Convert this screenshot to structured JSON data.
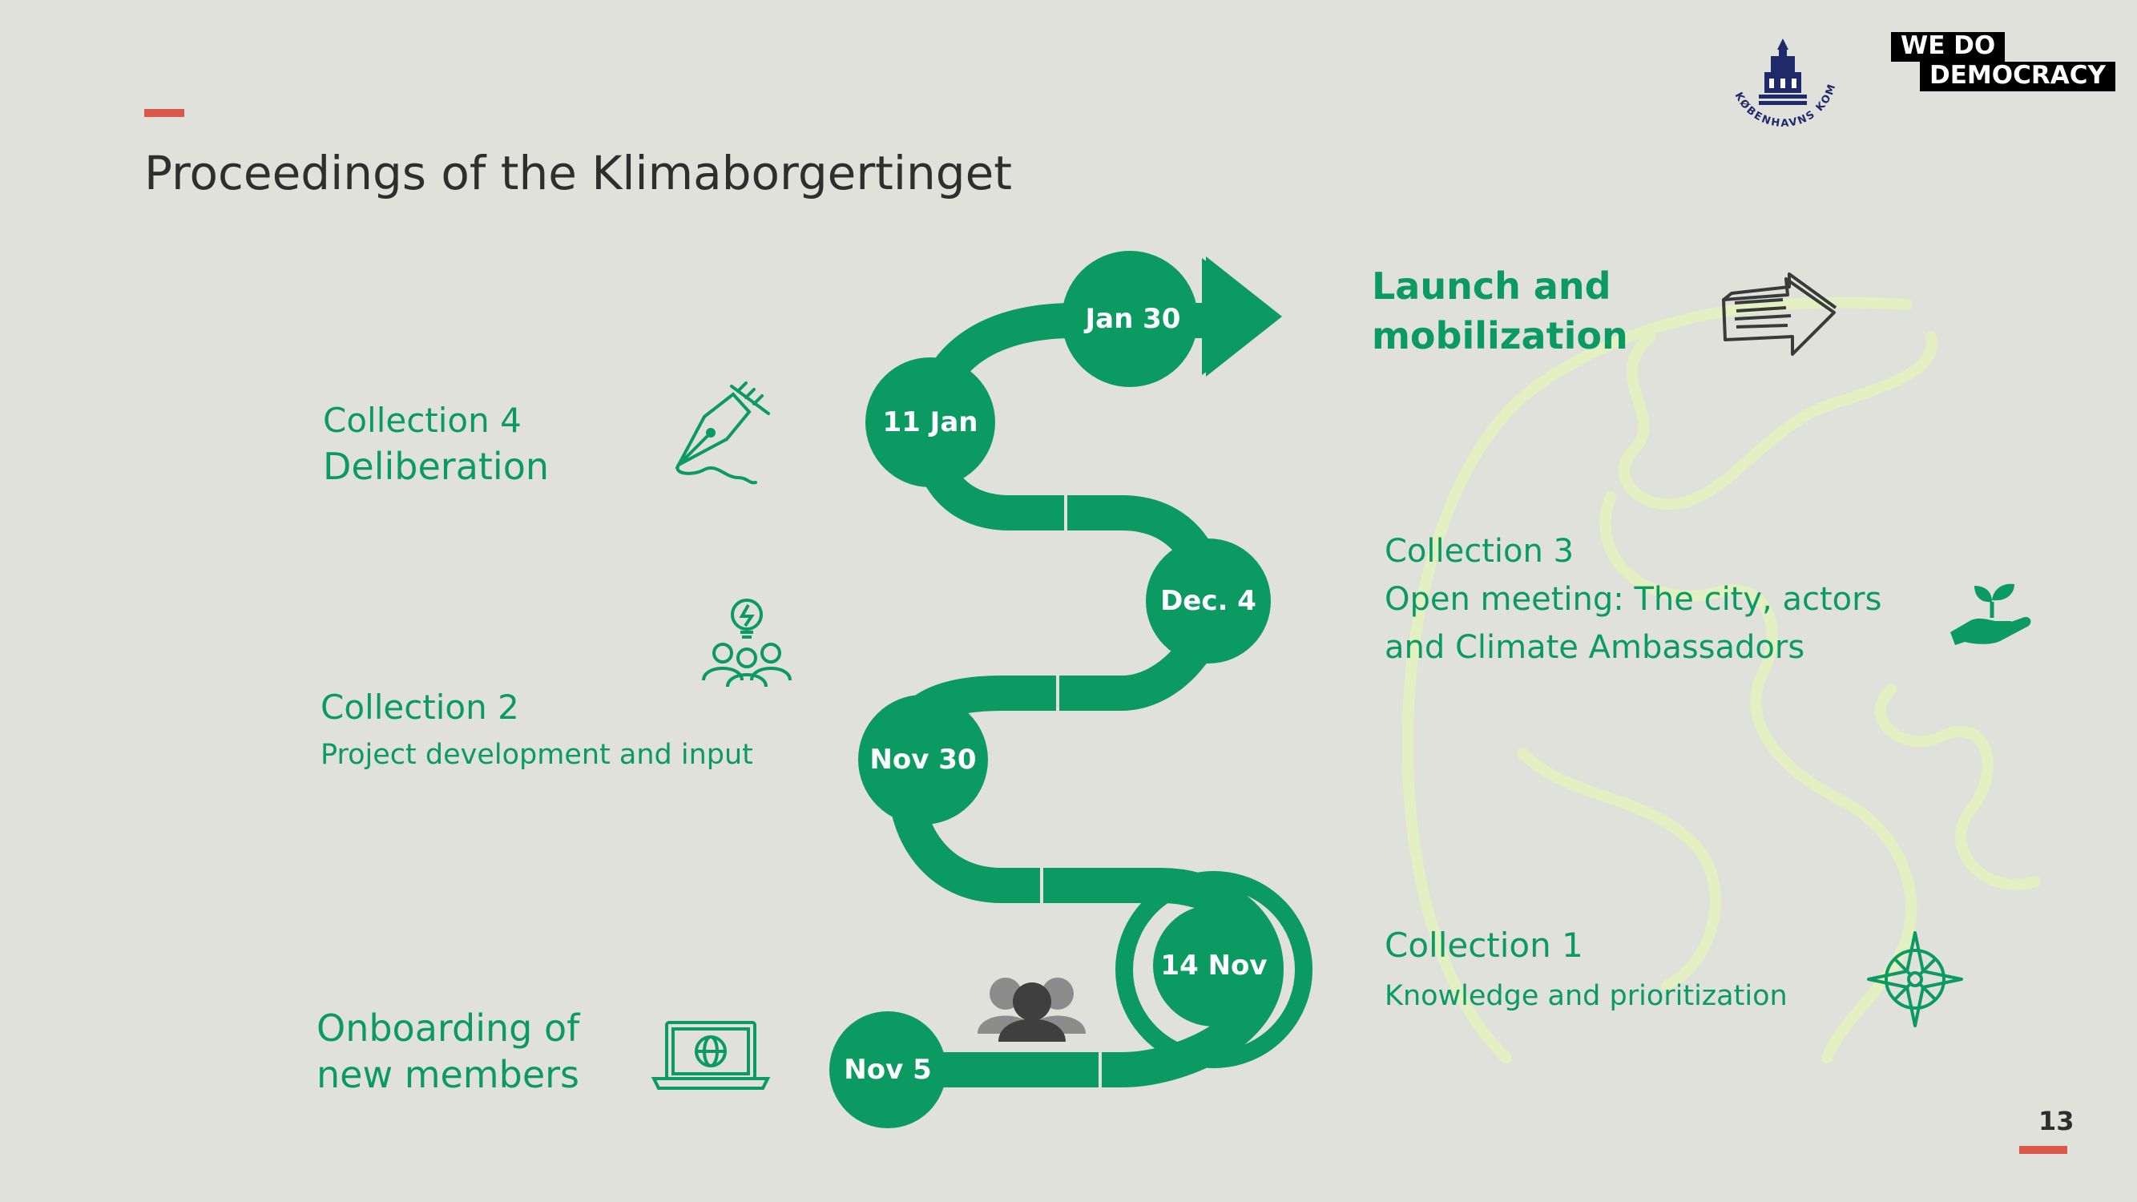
{
  "slide": {
    "title": "Proceedings of the Klimaborgertinget",
    "page_number": "13"
  },
  "logos": {
    "kommune_seal_text": "KØBENHAVNS KOMMUNE",
    "wedo_line1": "WE  DO",
    "wedo_line2": "DEMOCRACY"
  },
  "timeline": {
    "dates": [
      "Nov 5",
      "14 Nov",
      "Nov 30",
      "Dec. 4",
      "11 Jan",
      "Jan 30"
    ]
  },
  "steps": {
    "onboarding": {
      "line1": "Onboarding of",
      "line2": "new members",
      "icon": "laptop-globe-icon"
    },
    "collection1": {
      "head": "Collection 1",
      "sub": "Knowledge and prioritization",
      "icon": "compass-icon"
    },
    "collection2": {
      "head": "Collection 2",
      "sub": "Project development and input",
      "icon": "idea-group-icon"
    },
    "collection3": {
      "head": "Collection 3",
      "sub1": "Open meeting: The city, actors",
      "sub2": "and Climate Ambassadors",
      "icon": "plant-hand-icon"
    },
    "collection4": {
      "head": "Collection 4",
      "sub": "Deliberation",
      "icon": "fountain-pen-icon"
    },
    "launch": {
      "line1": "Launch and",
      "line2": "mobilization",
      "icon": "arrow-sketch-icon"
    }
  },
  "colors": {
    "green": "#0b9a61",
    "accent": "#d9584a",
    "background": "#e1e1dc",
    "globe": "#e2f0c2"
  }
}
